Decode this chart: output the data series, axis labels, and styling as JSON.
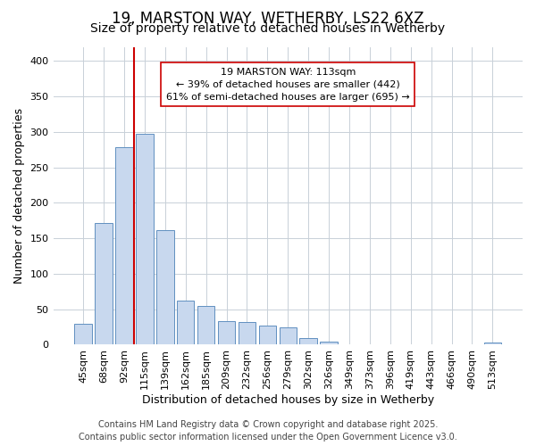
{
  "title_line1": "19, MARSTON WAY, WETHERBY, LS22 6XZ",
  "title_line2": "Size of property relative to detached houses in Wetherby",
  "xlabel": "Distribution of detached houses by size in Wetherby",
  "ylabel": "Number of detached properties",
  "categories": [
    "45sqm",
    "68sqm",
    "92sqm",
    "115sqm",
    "139sqm",
    "162sqm",
    "185sqm",
    "209sqm",
    "232sqm",
    "256sqm",
    "279sqm",
    "302sqm",
    "326sqm",
    "349sqm",
    "373sqm",
    "396sqm",
    "419sqm",
    "443sqm",
    "466sqm",
    "490sqm",
    "513sqm"
  ],
  "values": [
    29,
    172,
    278,
    297,
    162,
    62,
    55,
    33,
    32,
    27,
    25,
    9,
    4,
    0,
    0,
    0,
    0,
    0,
    0,
    0,
    3
  ],
  "bar_color": "#c8d8ee",
  "bar_edge_color": "#6090c0",
  "vline_color": "#cc0000",
  "vline_pos": 2.5,
  "annotation_text": "19 MARSTON WAY: 113sqm\n← 39% of detached houses are smaller (442)\n61% of semi-detached houses are larger (695) →",
  "annotation_box_facecolor": "#ffffff",
  "annotation_box_edgecolor": "#cc0000",
  "ylim": [
    0,
    420
  ],
  "yticks": [
    0,
    50,
    100,
    150,
    200,
    250,
    300,
    350,
    400
  ],
  "bg_color": "#ffffff",
  "plot_bg_color": "#ffffff",
  "grid_color": "#c8d0d8",
  "title_fontsize": 12,
  "subtitle_fontsize": 10,
  "axis_label_fontsize": 9,
  "tick_fontsize": 8,
  "annotation_fontsize": 8,
  "footer_fontsize": 7,
  "footer_line1": "Contains HM Land Registry data © Crown copyright and database right 2025.",
  "footer_line2": "Contains public sector information licensed under the Open Government Licence v3.0."
}
